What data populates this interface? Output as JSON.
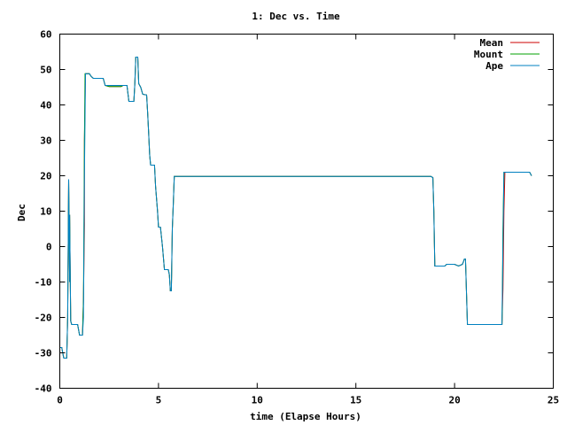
{
  "chart_data": {
    "type": "line",
    "title": "1: Dec vs. Time",
    "xlabel": "time (Elapse Hours)",
    "ylabel": "Dec",
    "xlim": [
      0,
      25
    ],
    "ylim": [
      -40,
      60
    ],
    "xticks": [
      0,
      5,
      10,
      15,
      20,
      25
    ],
    "yticks": [
      -40,
      -30,
      -20,
      -10,
      0,
      10,
      20,
      30,
      40,
      50,
      60
    ],
    "grid": false,
    "legend": "top-right",
    "series": [
      {
        "name": "Mean",
        "color": "#cc0000",
        "points": [
          [
            0,
            -28.5
          ],
          [
            0.1,
            -28.5
          ],
          [
            0.15,
            -30
          ],
          [
            0.2,
            -31.5
          ],
          [
            0.35,
            -31.5
          ],
          [
            0.4,
            -20
          ],
          [
            0.45,
            19
          ],
          [
            0.5,
            -10
          ],
          [
            0.5,
            9
          ],
          [
            0.55,
            -21
          ],
          [
            0.6,
            -22
          ],
          [
            0.9,
            -22
          ],
          [
            1.0,
            -25
          ],
          [
            1.15,
            -25
          ],
          [
            1.2,
            -15
          ],
          [
            1.25,
            6
          ],
          [
            1.25,
            30
          ],
          [
            1.3,
            48.8
          ],
          [
            1.5,
            48.8
          ],
          [
            1.6,
            48
          ],
          [
            1.7,
            47.5
          ],
          [
            2.2,
            47.5
          ],
          [
            2.3,
            45.5
          ],
          [
            2.5,
            45.2
          ],
          [
            3.1,
            45.2
          ],
          [
            3.2,
            45.5
          ],
          [
            3.4,
            45.5
          ],
          [
            3.5,
            41
          ],
          [
            3.75,
            41
          ],
          [
            3.8,
            46
          ],
          [
            3.85,
            53.5
          ],
          [
            3.95,
            53.5
          ],
          [
            4.0,
            46
          ],
          [
            4.1,
            45
          ],
          [
            4.2,
            43
          ],
          [
            4.4,
            42.8
          ],
          [
            4.45,
            38
          ],
          [
            4.5,
            32
          ],
          [
            4.55,
            26
          ],
          [
            4.6,
            23
          ],
          [
            4.8,
            23
          ],
          [
            4.85,
            17
          ],
          [
            4.95,
            10
          ],
          [
            5.0,
            5.5
          ],
          [
            5.1,
            5.5
          ],
          [
            5.2,
            0
          ],
          [
            5.3,
            -6.5
          ],
          [
            5.5,
            -6.5
          ],
          [
            5.55,
            -8
          ],
          [
            5.6,
            -12.5
          ],
          [
            5.65,
            -12.5
          ],
          [
            5.7,
            5
          ],
          [
            5.75,
            12
          ],
          [
            5.8,
            19.8
          ],
          [
            18.8,
            19.8
          ],
          [
            18.9,
            19.5
          ],
          [
            18.95,
            10
          ],
          [
            19.0,
            -5.5
          ],
          [
            19.5,
            -5.5
          ],
          [
            19.6,
            -5
          ],
          [
            20.0,
            -5
          ],
          [
            20.2,
            -5.5
          ],
          [
            20.4,
            -5
          ],
          [
            20.5,
            -3.5
          ],
          [
            20.55,
            -3.5
          ],
          [
            20.65,
            -22
          ],
          [
            22.4,
            -22
          ],
          [
            22.45,
            -12
          ],
          [
            22.5,
            10
          ],
          [
            22.55,
            21
          ],
          [
            23.8,
            21
          ],
          [
            23.9,
            20
          ]
        ]
      },
      {
        "name": "Mount",
        "color": "#00a000",
        "points": [
          [
            0,
            -28.5
          ],
          [
            0.1,
            -28.5
          ],
          [
            0.15,
            -30
          ],
          [
            0.2,
            -31.5
          ],
          [
            0.35,
            -31.5
          ],
          [
            0.4,
            -20
          ],
          [
            0.45,
            19
          ],
          [
            0.5,
            -10
          ],
          [
            0.5,
            9
          ],
          [
            0.55,
            -21
          ],
          [
            0.6,
            -22
          ],
          [
            0.9,
            -22
          ],
          [
            1.0,
            -25
          ],
          [
            1.15,
            -25
          ],
          [
            1.2,
            -15
          ],
          [
            1.22,
            5
          ],
          [
            1.25,
            30
          ],
          [
            1.28,
            48.8
          ],
          [
            1.5,
            48.8
          ],
          [
            1.6,
            48
          ],
          [
            1.7,
            47.5
          ],
          [
            2.2,
            47.5
          ],
          [
            2.3,
            45.5
          ],
          [
            2.5,
            45.2
          ],
          [
            3.1,
            45.2
          ],
          [
            3.2,
            45.5
          ],
          [
            3.4,
            45.5
          ],
          [
            3.5,
            41
          ],
          [
            3.75,
            41
          ],
          [
            3.8,
            46
          ],
          [
            3.85,
            53.5
          ],
          [
            3.95,
            53.5
          ],
          [
            4.0,
            46
          ],
          [
            4.1,
            45
          ],
          [
            4.2,
            43
          ],
          [
            4.4,
            42.8
          ],
          [
            4.45,
            38
          ],
          [
            4.5,
            32
          ],
          [
            4.55,
            26
          ],
          [
            4.6,
            23
          ],
          [
            4.8,
            23
          ],
          [
            4.85,
            17
          ],
          [
            4.95,
            10
          ],
          [
            5.0,
            5.5
          ],
          [
            5.1,
            5.5
          ],
          [
            5.2,
            0
          ],
          [
            5.3,
            -6.5
          ],
          [
            5.5,
            -6.5
          ],
          [
            5.55,
            -8
          ],
          [
            5.6,
            -12.5
          ],
          [
            5.65,
            -12.5
          ],
          [
            5.7,
            5
          ],
          [
            5.75,
            12
          ],
          [
            5.8,
            19.8
          ],
          [
            18.8,
            19.8
          ],
          [
            18.9,
            19.5
          ],
          [
            18.95,
            10
          ],
          [
            19.0,
            -5.5
          ],
          [
            19.5,
            -5.5
          ],
          [
            19.6,
            -5
          ],
          [
            20.0,
            -5
          ],
          [
            20.2,
            -5.5
          ],
          [
            20.4,
            -5
          ],
          [
            20.5,
            -3.5
          ],
          [
            20.55,
            -3.5
          ],
          [
            20.65,
            -22
          ],
          [
            22.4,
            -22
          ],
          [
            22.42,
            -15
          ],
          [
            22.45,
            5
          ],
          [
            22.5,
            21
          ],
          [
            23.8,
            21
          ],
          [
            23.9,
            20
          ]
        ]
      },
      {
        "name": "Ape",
        "color": "#0080c0",
        "points": [
          [
            0,
            -28.5
          ],
          [
            0.1,
            -28.5
          ],
          [
            0.15,
            -30
          ],
          [
            0.2,
            -31.5
          ],
          [
            0.35,
            -31.5
          ],
          [
            0.4,
            -20
          ],
          [
            0.45,
            19
          ],
          [
            0.5,
            -10
          ],
          [
            0.5,
            9
          ],
          [
            0.55,
            -21
          ],
          [
            0.6,
            -22
          ],
          [
            0.9,
            -22
          ],
          [
            1.0,
            -25
          ],
          [
            1.15,
            -25
          ],
          [
            1.2,
            -20
          ],
          [
            1.25,
            20
          ],
          [
            1.3,
            48.8
          ],
          [
            1.5,
            48.8
          ],
          [
            1.6,
            48
          ],
          [
            1.7,
            47.5
          ],
          [
            2.2,
            47.5
          ],
          [
            2.3,
            45.5
          ],
          [
            2.5,
            45.5
          ],
          [
            3.1,
            45.5
          ],
          [
            3.2,
            45.5
          ],
          [
            3.4,
            45.5
          ],
          [
            3.5,
            41
          ],
          [
            3.75,
            41
          ],
          [
            3.8,
            46
          ],
          [
            3.85,
            53.5
          ],
          [
            3.95,
            53.5
          ],
          [
            4.0,
            46
          ],
          [
            4.1,
            45
          ],
          [
            4.2,
            43
          ],
          [
            4.4,
            42.8
          ],
          [
            4.45,
            38
          ],
          [
            4.5,
            32
          ],
          [
            4.55,
            26
          ],
          [
            4.6,
            23
          ],
          [
            4.8,
            23
          ],
          [
            4.85,
            17
          ],
          [
            4.95,
            10
          ],
          [
            5.0,
            5.5
          ],
          [
            5.1,
            5.5
          ],
          [
            5.2,
            0
          ],
          [
            5.3,
            -6.5
          ],
          [
            5.5,
            -6.5
          ],
          [
            5.55,
            -8
          ],
          [
            5.6,
            -12.5
          ],
          [
            5.65,
            -12.5
          ],
          [
            5.7,
            5
          ],
          [
            5.75,
            12
          ],
          [
            5.8,
            19.8
          ],
          [
            18.8,
            19.8
          ],
          [
            18.9,
            19.5
          ],
          [
            18.95,
            10
          ],
          [
            19.0,
            -5.5
          ],
          [
            19.5,
            -5.5
          ],
          [
            19.6,
            -5
          ],
          [
            20.0,
            -5
          ],
          [
            20.2,
            -5.5
          ],
          [
            20.4,
            -5
          ],
          [
            20.5,
            -3.5
          ],
          [
            20.55,
            -3.5
          ],
          [
            20.65,
            -22
          ],
          [
            22.4,
            -22
          ],
          [
            22.45,
            0
          ],
          [
            22.5,
            21
          ],
          [
            23.8,
            21
          ],
          [
            23.9,
            20
          ]
        ]
      }
    ]
  }
}
